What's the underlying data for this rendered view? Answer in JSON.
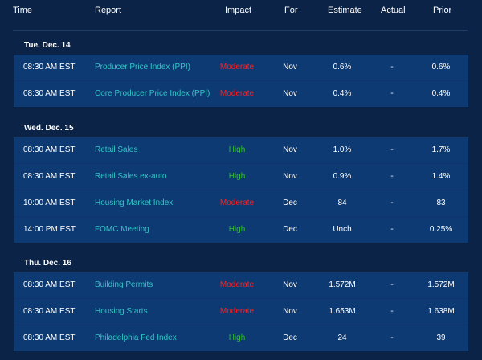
{
  "columns": {
    "time": "Time",
    "report": "Report",
    "impact": "Impact",
    "for": "For",
    "estimate": "Estimate",
    "actual": "Actual",
    "prior": "Prior"
  },
  "days": [
    {
      "label": "Tue. Dec. 14",
      "rows": [
        {
          "time": "08:30 AM EST",
          "report": "Producer Price Index (PPI)",
          "impact": "Moderate",
          "for": "Nov",
          "estimate": "0.6%",
          "actual": "-",
          "prior": "0.6%"
        },
        {
          "time": "08:30 AM EST",
          "report": "Core Producer Price Index (PPI)",
          "impact": "Moderate",
          "for": "Nov",
          "estimate": "0.4%",
          "actual": "-",
          "prior": "0.4%"
        }
      ]
    },
    {
      "label": "Wed. Dec. 15",
      "rows": [
        {
          "time": "08:30 AM EST",
          "report": "Retail Sales",
          "impact": "High",
          "for": "Nov",
          "estimate": "1.0%",
          "actual": "-",
          "prior": "1.7%"
        },
        {
          "time": "08:30 AM EST",
          "report": "Retail Sales ex-auto",
          "impact": "High",
          "for": "Nov",
          "estimate": "0.9%",
          "actual": "-",
          "prior": "1.4%"
        },
        {
          "time": "10:00 AM EST",
          "report": "Housing Market Index",
          "impact": "Moderate",
          "for": "Dec",
          "estimate": "84",
          "actual": "-",
          "prior": "83"
        },
        {
          "time": "14:00 PM EST",
          "report": "FOMC Meeting",
          "impact": "High",
          "for": "Dec",
          "estimate": "Unch",
          "actual": "-",
          "prior": "0.25%"
        }
      ]
    },
    {
      "label": "Thu. Dec. 16",
      "rows": [
        {
          "time": "08:30 AM EST",
          "report": "Building Permits",
          "impact": "Moderate",
          "for": "Nov",
          "estimate": "1.572M",
          "actual": "-",
          "prior": "1.572M"
        },
        {
          "time": "08:30 AM EST",
          "report": "Housing Starts",
          "impact": "Moderate",
          "for": "Nov",
          "estimate": "1.653M",
          "actual": "-",
          "prior": "1.638M"
        },
        {
          "time": "08:30 AM EST",
          "report": "Philadelphia Fed Index",
          "impact": "High",
          "for": "Dec",
          "estimate": "24",
          "actual": "-",
          "prior": "39"
        }
      ]
    }
  ],
  "colors": {
    "background": "#0b2347",
    "row": "#0d3a72",
    "report_link": "#2fc7c7",
    "impact_moderate": "#ff1e1e",
    "impact_high": "#31c22a"
  }
}
